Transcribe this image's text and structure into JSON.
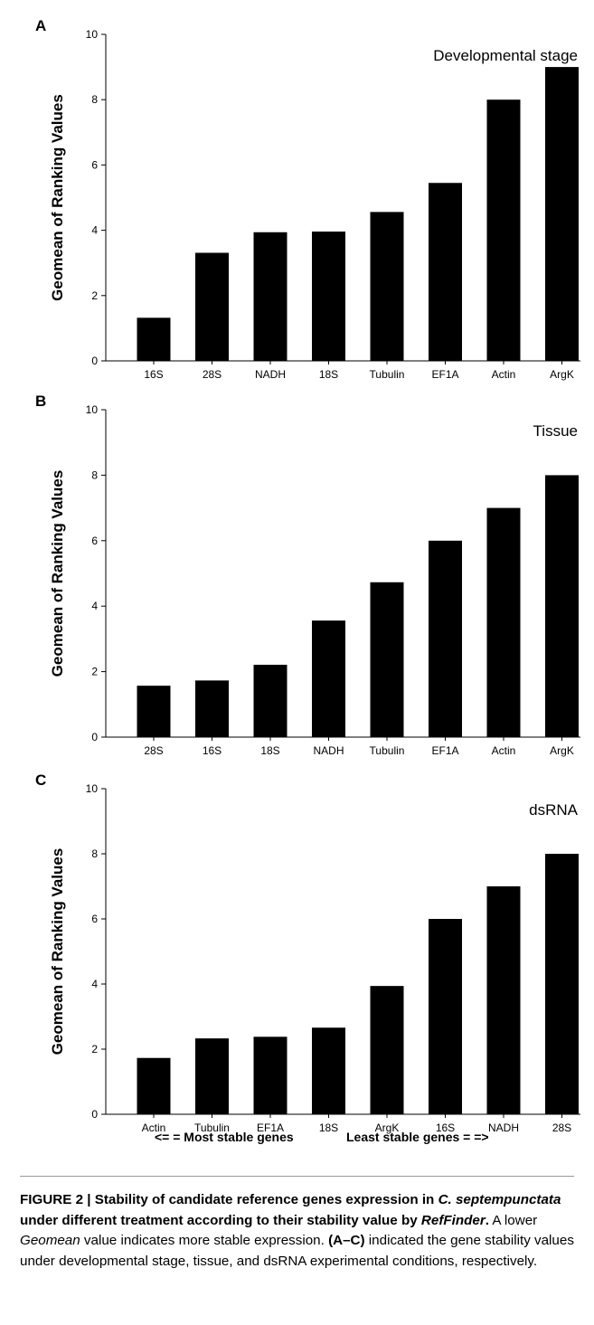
{
  "chart_data": [
    {
      "type": "bar",
      "panel": "A",
      "annotation": "Developmental stage",
      "ylabel": "Geomean of Ranking Values",
      "ylim": [
        0,
        10
      ],
      "yticks": [
        0,
        2,
        4,
        6,
        8,
        10
      ],
      "categories": [
        "16S",
        "28S",
        "NADH",
        "18S",
        "Tubulin",
        "EF1A",
        "Actin",
        "ArgK"
      ],
      "values": [
        1.32,
        3.31,
        3.94,
        3.96,
        4.56,
        5.45,
        8.0,
        9.0
      ],
      "bar_color": "#000000"
    },
    {
      "type": "bar",
      "panel": "B",
      "annotation": "Tissue",
      "ylabel": "Geomean of Ranking Values",
      "ylim": [
        0,
        10
      ],
      "yticks": [
        0,
        2,
        4,
        6,
        8,
        10
      ],
      "categories": [
        "28S",
        "16S",
        "18S",
        "NADH",
        "Tubulin",
        "EF1A",
        "Actin",
        "ArgK"
      ],
      "values": [
        1.57,
        1.73,
        2.21,
        3.56,
        4.73,
        6.0,
        7.0,
        8.0
      ],
      "bar_color": "#000000"
    },
    {
      "type": "bar",
      "panel": "C",
      "annotation": "dsRNA",
      "ylabel": "Geomean of Ranking Values",
      "ylim": [
        0,
        10
      ],
      "yticks": [
        0,
        2,
        4,
        6,
        8,
        10
      ],
      "categories": [
        "Actin",
        "Tubulin",
        "EF1A",
        "18S",
        "ArgK",
        "16S",
        "NADH",
        "28S"
      ],
      "values": [
        1.73,
        2.33,
        2.38,
        2.66,
        3.94,
        6.0,
        7.0,
        8.0
      ],
      "bar_color": "#000000"
    }
  ],
  "bottom_labels": {
    "most_stable": "<= = Most stable genes",
    "least_stable": "Least stable genes = =>"
  },
  "caption": {
    "label": "FIGURE 2 | Stability of candidate reference genes expression in",
    "species": "C. septempunctata",
    "after_species": " under different treatment according to their stability value by ",
    "tool": "RefFinder",
    "title_end": ".",
    "sentence1_a": " A lower ",
    "sentence1_italic": "Geomean",
    "sentence1_b": " value indicates more stable expression. ",
    "panel_ref": "(A–C)",
    "sentence2": " indicated the gene stability values under developmental stage, tissue, and dsRNA experimental conditions, respectively."
  }
}
